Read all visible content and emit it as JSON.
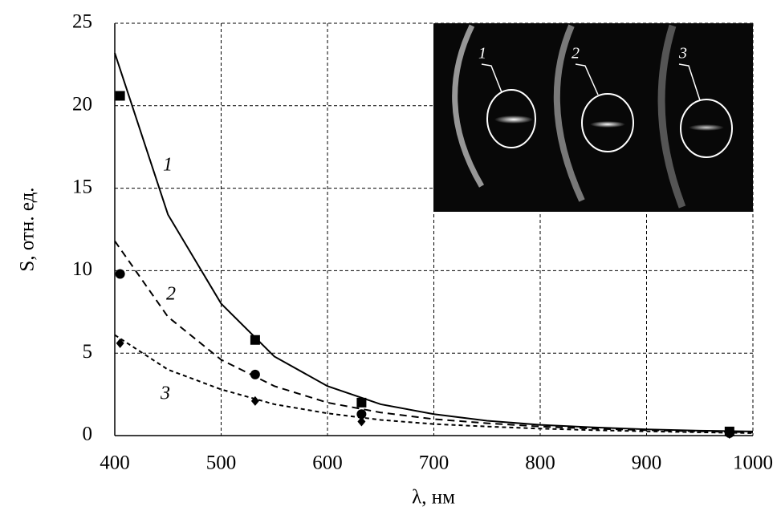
{
  "chart_data": {
    "type": "line",
    "x_label": "λ, нм",
    "y_label": "S, отн. ед.",
    "xlim": [
      400,
      1000
    ],
    "xticks": [
      400,
      500,
      600,
      700,
      800,
      900,
      1000
    ],
    "ylim": [
      0,
      25
    ],
    "yticks": [
      0,
      5,
      10,
      15,
      20,
      25
    ],
    "grid": true,
    "x": [
      405,
      532,
      632,
      978
    ],
    "fit_x": [
      400,
      450,
      500,
      550,
      600,
      650,
      700,
      750,
      800,
      850,
      900,
      950,
      1000
    ],
    "series": [
      {
        "name": "1",
        "color": "#000000",
        "marker": "square",
        "dash": "solid",
        "values": [
          20.6,
          5.8,
          2.0,
          0.25
        ],
        "fit": [
          23.2,
          13.4,
          8.0,
          4.8,
          3.0,
          1.9,
          1.3,
          0.9,
          0.65,
          0.5,
          0.38,
          0.3,
          0.25
        ]
      },
      {
        "name": "2",
        "color": "#000000",
        "marker": "circle",
        "dash": "dashed",
        "values": [
          9.8,
          3.7,
          1.3,
          0.15
        ],
        "fit": [
          11.8,
          7.2,
          4.6,
          3.0,
          2.0,
          1.4,
          1.0,
          0.75,
          0.55,
          0.42,
          0.33,
          0.26,
          0.2
        ]
      },
      {
        "name": "3",
        "color": "#000000",
        "marker": "diamond",
        "dash": "dotted",
        "values": [
          5.6,
          2.1,
          0.85,
          0.1
        ],
        "fit": [
          6.1,
          4.0,
          2.8,
          1.9,
          1.35,
          0.95,
          0.7,
          0.55,
          0.42,
          0.33,
          0.26,
          0.2,
          0.15
        ]
      }
    ]
  }
}
